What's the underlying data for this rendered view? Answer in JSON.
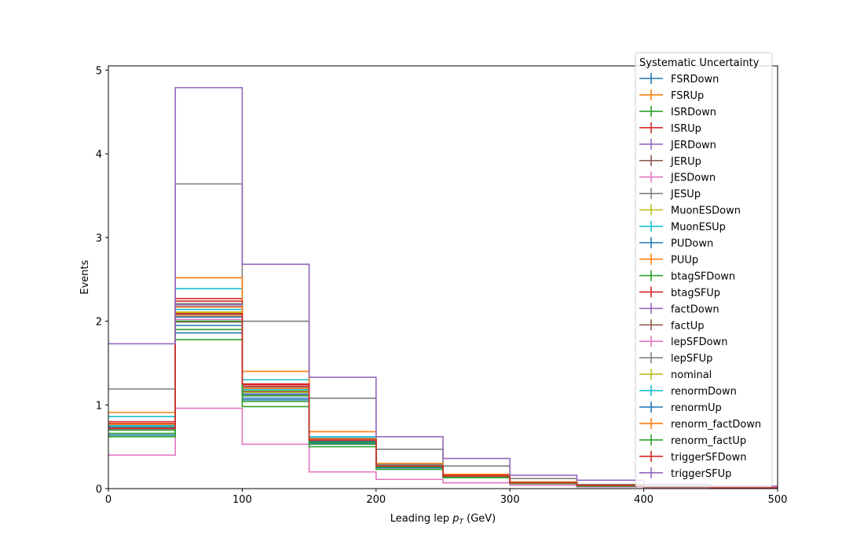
{
  "chart_data": {
    "type": "histogram-step",
    "xlabel_main": "Leading lep ",
    "xlabel_var": "p",
    "xlabel_sub": "T",
    "xlabel_unit": " (GeV)",
    "ylabel": "Events",
    "xlim": [
      0,
      500
    ],
    "ylim": [
      0,
      5.05
    ],
    "xticks": [
      0,
      100,
      200,
      300,
      400,
      500
    ],
    "yticks": [
      0,
      1,
      2,
      3,
      4,
      5
    ],
    "bin_edges": [
      0,
      50,
      100,
      150,
      200,
      250,
      300,
      350,
      400,
      450,
      500
    ],
    "legend_title": "Systematic Uncertainty",
    "legend_position": "upper right",
    "series": [
      {
        "name": "FSRDown",
        "color": "#1f77b4",
        "values": [
          0.64,
          1.86,
          1.06,
          0.54,
          0.25,
          0.14,
          0.06,
          0.03,
          0.02,
          0.01
        ]
      },
      {
        "name": "FSRUp",
        "color": "#ff7f0e",
        "values": [
          0.72,
          2.06,
          1.13,
          0.56,
          0.26,
          0.15,
          0.07,
          0.04,
          0.02,
          0.01
        ]
      },
      {
        "name": "ISRDown",
        "color": "#2ca02c",
        "values": [
          0.66,
          1.9,
          1.04,
          0.53,
          0.25,
          0.14,
          0.06,
          0.03,
          0.02,
          0.01
        ]
      },
      {
        "name": "ISRUp",
        "color": "#d62728",
        "values": [
          0.78,
          2.27,
          1.24,
          0.6,
          0.28,
          0.16,
          0.07,
          0.04,
          0.02,
          0.01
        ]
      },
      {
        "name": "JERDown",
        "color": "#9467bd",
        "values": [
          0.75,
          2.2,
          1.18,
          0.58,
          0.27,
          0.15,
          0.07,
          0.04,
          0.02,
          0.01
        ]
      },
      {
        "name": "JERUp",
        "color": "#8c564b",
        "values": [
          0.72,
          1.99,
          1.11,
          0.55,
          0.26,
          0.14,
          0.07,
          0.03,
          0.02,
          0.01
        ]
      },
      {
        "name": "JESDown",
        "color": "#e377c2",
        "values": [
          0.4,
          0.96,
          0.53,
          0.2,
          0.11,
          0.07,
          0.04,
          0.02,
          0.01,
          0.005
        ]
      },
      {
        "name": "JESUp",
        "color": "#7f7f7f",
        "values": [
          1.19,
          3.64,
          2.0,
          1.08,
          0.47,
          0.27,
          0.12,
          0.05,
          0.03,
          0.01
        ]
      },
      {
        "name": "MuonESDown",
        "color": "#bcbd22",
        "values": [
          0.72,
          2.1,
          1.15,
          0.57,
          0.26,
          0.15,
          0.07,
          0.04,
          0.02,
          0.01
        ]
      },
      {
        "name": "MuonESUp",
        "color": "#17becf",
        "values": [
          0.86,
          2.39,
          1.3,
          0.62,
          0.29,
          0.16,
          0.07,
          0.04,
          0.02,
          0.01
        ]
      },
      {
        "name": "PUDown",
        "color": "#1f77b4",
        "values": [
          0.7,
          1.95,
          1.08,
          0.54,
          0.25,
          0.14,
          0.06,
          0.03,
          0.02,
          0.01
        ]
      },
      {
        "name": "PUUp",
        "color": "#ff7f0e",
        "values": [
          0.91,
          2.52,
          1.4,
          0.68,
          0.3,
          0.17,
          0.08,
          0.04,
          0.02,
          0.01
        ]
      },
      {
        "name": "btagSFDown",
        "color": "#2ca02c",
        "values": [
          0.62,
          1.78,
          0.98,
          0.5,
          0.23,
          0.13,
          0.06,
          0.03,
          0.02,
          0.01
        ]
      },
      {
        "name": "btagSFUp",
        "color": "#d62728",
        "values": [
          0.8,
          2.24,
          1.22,
          0.6,
          0.28,
          0.16,
          0.07,
          0.04,
          0.02,
          0.01
        ]
      },
      {
        "name": "factDown",
        "color": "#9467bd",
        "values": [
          0.76,
          2.18,
          1.2,
          0.59,
          0.27,
          0.15,
          0.07,
          0.04,
          0.02,
          0.01
        ]
      },
      {
        "name": "factUp",
        "color": "#8c564b",
        "values": [
          0.73,
          2.08,
          1.16,
          0.57,
          0.26,
          0.15,
          0.07,
          0.03,
          0.02,
          0.01
        ]
      },
      {
        "name": "lepSFDown",
        "color": "#e377c2",
        "values": [
          0.71,
          2.02,
          1.12,
          0.55,
          0.26,
          0.14,
          0.07,
          0.03,
          0.02,
          0.01
        ]
      },
      {
        "name": "lepSFUp",
        "color": "#7f7f7f",
        "values": [
          0.77,
          2.21,
          1.21,
          0.6,
          0.28,
          0.15,
          0.07,
          0.04,
          0.02,
          0.01
        ]
      },
      {
        "name": "nominal",
        "color": "#bcbd22",
        "values": [
          0.74,
          2.11,
          1.17,
          0.58,
          0.27,
          0.15,
          0.07,
          0.04,
          0.02,
          0.01
        ]
      },
      {
        "name": "renormDown",
        "color": "#17becf",
        "values": [
          0.75,
          2.14,
          1.18,
          0.59,
          0.27,
          0.15,
          0.07,
          0.04,
          0.02,
          0.01
        ]
      },
      {
        "name": "renormUp",
        "color": "#1f77b4",
        "values": [
          0.73,
          2.05,
          1.13,
          0.56,
          0.26,
          0.14,
          0.07,
          0.03,
          0.02,
          0.01
        ]
      },
      {
        "name": "renorm_factDown",
        "color": "#ff7f0e",
        "values": [
          0.77,
          2.17,
          1.2,
          0.59,
          0.27,
          0.15,
          0.07,
          0.04,
          0.02,
          0.01
        ]
      },
      {
        "name": "renorm_factUp",
        "color": "#2ca02c",
        "values": [
          0.7,
          2.0,
          1.11,
          0.55,
          0.26,
          0.14,
          0.07,
          0.03,
          0.02,
          0.01
        ]
      },
      {
        "name": "triggerSFDown",
        "color": "#d62728",
        "values": [
          0.72,
          2.09,
          1.25,
          0.58,
          0.27,
          0.15,
          0.07,
          0.04,
          0.02,
          0.01
        ]
      },
      {
        "name": "triggerSFUp",
        "color": "#9467bd",
        "values": [
          1.73,
          4.79,
          2.68,
          1.33,
          0.62,
          0.36,
          0.16,
          0.1,
          0.05,
          0.03
        ]
      }
    ]
  }
}
